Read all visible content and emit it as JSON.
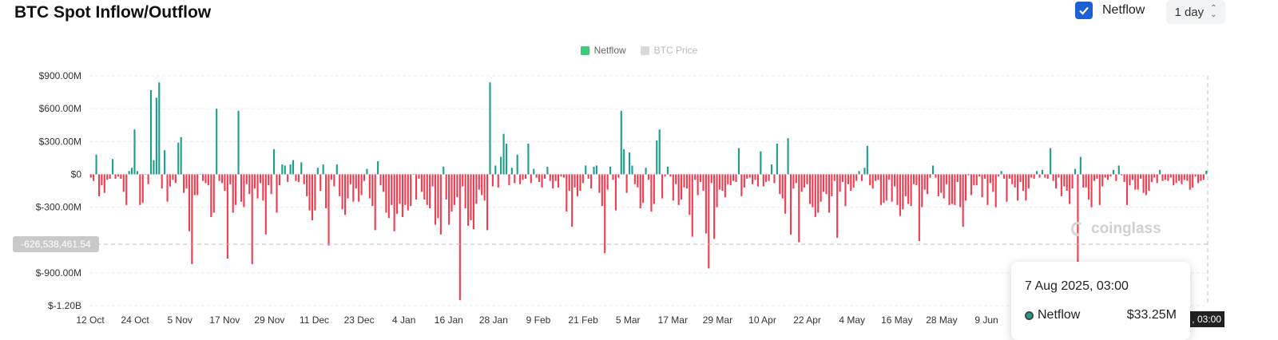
{
  "title": "BTC Spot Inflow/Outflow",
  "controls": {
    "netflow_label": "Netflow",
    "netflow_checked": true,
    "interval": "1 day"
  },
  "legend": [
    {
      "label": "Netflow",
      "color": "#3ec97b",
      "active": true
    },
    {
      "label": "BTC Price",
      "color": "#d9d9d9",
      "active": false
    }
  ],
  "crosshair": {
    "y_value": "-626,538,461.54",
    "x_value": ", 03:00"
  },
  "tooltip": {
    "date": "7 Aug 2025, 03:00",
    "series": "Netflow",
    "value": "$33.25M"
  },
  "watermark": "coinglass",
  "colors": {
    "positive": "#1f9e89",
    "negative": "#ef3d52",
    "grid": "#ececec"
  },
  "chart_data": {
    "type": "bar",
    "title": "BTC Spot Inflow/Outflow",
    "y_unit": "USD (millions)",
    "ylim": [
      -1200,
      900
    ],
    "y_ticks": [
      900,
      600,
      300,
      0,
      -300,
      -900,
      -1200
    ],
    "y_tick_labels": [
      "$900.00M",
      "$600.00M",
      "$300.00M",
      "$0",
      "$-300.00M",
      "$-900.00M",
      "$-1.20B"
    ],
    "x_tick_labels": [
      "12 Oct",
      "24 Oct",
      "5 Nov",
      "17 Nov",
      "29 Nov",
      "11 Dec",
      "23 Dec",
      "4 Jan",
      "16 Jan",
      "28 Jan",
      "9 Feb",
      "21 Feb",
      "5 Mar",
      "17 Mar",
      "29 Mar",
      "10 Apr",
      "22 Apr",
      "4 May",
      "16 May",
      "28 May",
      "9 Jun"
    ],
    "grid": true,
    "legend_position": "top-center",
    "series": [
      {
        "name": "Netflow",
        "values": [
          -30,
          -60,
          180,
          -200,
          -100,
          -170,
          -50,
          -40,
          140,
          -40,
          -20,
          -40,
          -160,
          -280,
          30,
          60,
          410,
          30,
          -280,
          -260,
          0,
          -90,
          770,
          130,
          700,
          840,
          -130,
          220,
          -250,
          -110,
          -50,
          -80,
          290,
          340,
          -170,
          -130,
          -520,
          -820,
          -190,
          -190,
          0,
          -60,
          -80,
          -100,
          -390,
          -350,
          600,
          -60,
          -80,
          -150,
          -770,
          -90,
          -350,
          -280,
          580,
          -250,
          -300,
          -90,
          -180,
          -820,
          -130,
          -220,
          -80,
          -240,
          -550,
          -100,
          -180,
          230,
          -350,
          -100,
          90,
          80,
          -70,
          90,
          130,
          -60,
          -70,
          110,
          -90,
          -200,
          -330,
          -420,
          -330,
          60,
          -150,
          90,
          -310,
          -650,
          -50,
          -110,
          90,
          -200,
          -320,
          -370,
          -220,
          -90,
          -250,
          -130,
          -250,
          -190,
          -60,
          50,
          -220,
          -290,
          -510,
          120,
          -100,
          -160,
          -350,
          -400,
          -280,
          -520,
          -360,
          -270,
          -390,
          -280,
          -330,
          -290,
          0,
          -230,
          -40,
          -160,
          -230,
          -280,
          -310,
          -110,
          -460,
          -400,
          -550,
          70,
          -230,
          -460,
          -340,
          -280,
          -210,
          -1150,
          -110,
          -310,
          -470,
          -420,
          -500,
          -270,
          -140,
          -190,
          -240,
          -510,
          840,
          -110,
          80,
          -120,
          160,
          370,
          280,
          -100,
          60,
          -80,
          180,
          -90,
          -50,
          -40,
          280,
          -80,
          50,
          -30,
          -70,
          -120,
          -40,
          70,
          -60,
          -130,
          -60,
          -120,
          -20,
          -30,
          -340,
          -150,
          -480,
          -120,
          -200,
          -150,
          -80,
          80,
          -40,
          -130,
          70,
          80,
          -170,
          -290,
          -720,
          -140,
          70,
          -50,
          -330,
          -30,
          580,
          230,
          -170,
          200,
          80,
          -90,
          -120,
          -310,
          -260,
          60,
          -50,
          -340,
          -270,
          310,
          410,
          -220,
          -20,
          70,
          -20,
          -240,
          -90,
          -280,
          -230,
          -120,
          -130,
          -370,
          -570,
          -50,
          -190,
          -70,
          -150,
          -540,
          -860,
          -80,
          -590,
          -300,
          -140,
          -150,
          -210,
          -90,
          -100,
          -60,
          -70,
          240,
          -200,
          -120,
          -40,
          -30,
          -90,
          -50,
          -110,
          210,
          -110,
          -70,
          -60,
          90,
          -80,
          280,
          -180,
          -220,
          -360,
          330,
          -550,
          -130,
          -80,
          -620,
          -160,
          -120,
          -90,
          -270,
          -300,
          -390,
          -350,
          -250,
          -160,
          -180,
          -350,
          -200,
          -60,
          -580,
          -160,
          -70,
          -290,
          -90,
          -150,
          -120,
          -60,
          30,
          -60,
          60,
          260,
          -100,
          -130,
          -60,
          -50,
          -280,
          -260,
          -240,
          -50,
          -250,
          -110,
          -280,
          -380,
          -320,
          -200,
          -270,
          -290,
          -90,
          -100,
          -610,
          -300,
          -140,
          -180,
          -30,
          80,
          -30,
          -200,
          -170,
          -220,
          -90,
          -280,
          -270,
          -280,
          -70,
          -300,
          -480,
          -240,
          -10,
          -190,
          -100,
          -100,
          -20,
          -210,
          -40,
          -280,
          -80,
          -160,
          -300,
          -20,
          30,
          -40,
          -250,
          -40,
          -90,
          -120,
          -240,
          -70,
          -150,
          -240,
          -130,
          -30,
          -40,
          30,
          -30,
          40,
          -30,
          -40,
          240,
          -60,
          -130,
          -30,
          -200,
          -110,
          -150,
          -270,
          -130,
          50,
          -1060,
          160,
          -120,
          -120,
          -230,
          -300,
          -60,
          -40,
          -280,
          -110,
          -30,
          -50,
          -20,
          40,
          -60,
          80,
          -10,
          -70,
          -280,
          -100,
          -50,
          -140,
          -140,
          -40,
          -170,
          -190,
          -150,
          -70,
          -30,
          -80,
          40,
          -60,
          -50,
          -60,
          -30,
          -100,
          -80,
          -60,
          -90,
          -50,
          -60,
          -140,
          -120,
          -20,
          -80,
          -60,
          -50,
          33.25
        ]
      }
    ]
  }
}
